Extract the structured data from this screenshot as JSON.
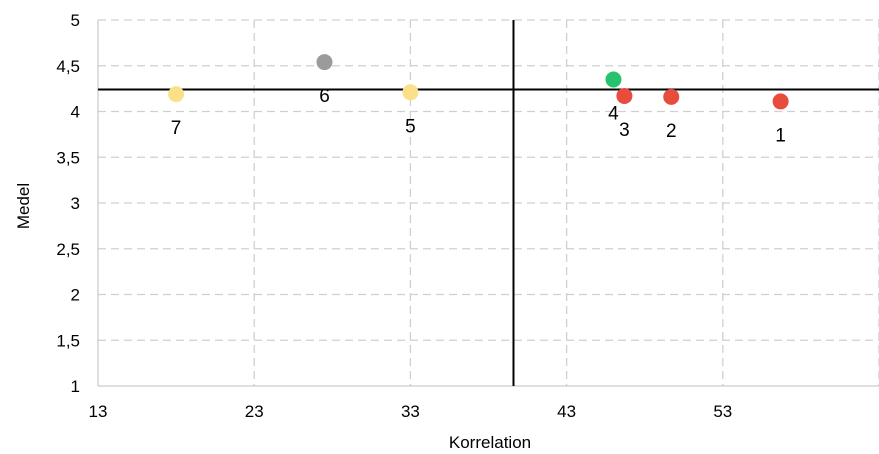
{
  "chart_data": {
    "type": "scatter",
    "xlabel": "Korrelation",
    "ylabel": "Medel",
    "xlim": [
      13,
      63
    ],
    "ylim": [
      1,
      5
    ],
    "x_ticks": [
      13,
      23,
      33,
      43,
      53
    ],
    "y_ticks": [
      1,
      1.5,
      2,
      2.5,
      3,
      3.5,
      4,
      4.5,
      5
    ],
    "x_tick_labels": [
      "13",
      "23",
      "33",
      "43",
      "53"
    ],
    "y_tick_labels": [
      "1",
      "1,5",
      "2",
      "2,5",
      "3",
      "3,5",
      "4",
      "4,5",
      "5"
    ],
    "grid": true,
    "reference_lines": {
      "x": 39.6,
      "y": 4.24
    },
    "points": [
      {
        "label": "1",
        "x": 56.7,
        "y": 4.11,
        "color": "#e84c3d"
      },
      {
        "label": "2",
        "x": 49.7,
        "y": 4.16,
        "color": "#e84c3d"
      },
      {
        "label": "3",
        "x": 46.7,
        "y": 4.17,
        "color": "#e84c3d"
      },
      {
        "label": "4",
        "x": 46.0,
        "y": 4.35,
        "color": "#27c26c"
      },
      {
        "label": "5",
        "x": 33.0,
        "y": 4.21,
        "color": "#fbe08a"
      },
      {
        "label": "6",
        "x": 27.5,
        "y": 4.54,
        "color": "#9b9b9b"
      },
      {
        "label": "7",
        "x": 18.0,
        "y": 4.19,
        "color": "#fbe08a"
      }
    ]
  }
}
